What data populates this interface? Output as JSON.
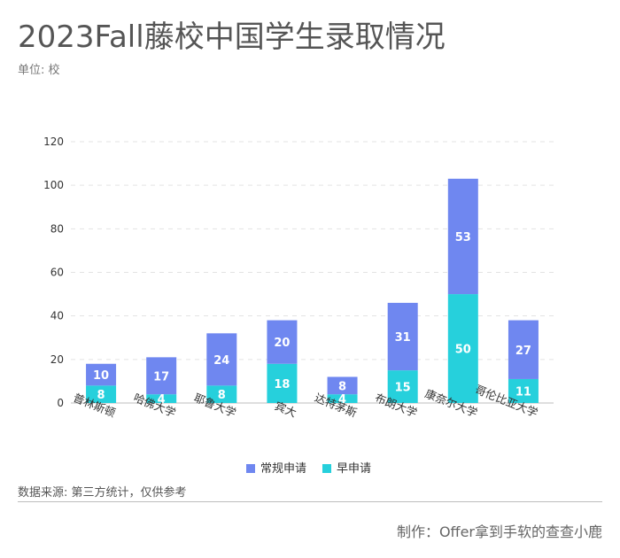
{
  "header": {
    "title": "2023Fall藤校中国学生录取情况",
    "unit": "单位: 校"
  },
  "footer": {
    "source": "数据来源: 第三方统计，仅供参考",
    "credit": "制作：Offer拿到手软的查查小鹿"
  },
  "colors": {
    "regular": "#6f87f0",
    "early": "#26d0dc",
    "grid": "#e3e3e3",
    "axis": "#bdbdbd"
  },
  "chart_data": {
    "type": "bar",
    "stacked": true,
    "categories": [
      "普林斯顿",
      "哈佛大学",
      "耶鲁大学",
      "宾大",
      "达特茅斯",
      "布朗大学",
      "康奈尔大学",
      "哥伦比亚大学"
    ],
    "series": [
      {
        "name": "早申请",
        "values": [
          8,
          4,
          8,
          18,
          4,
          15,
          50,
          11
        ]
      },
      {
        "name": "常规申请",
        "values": [
          10,
          17,
          24,
          20,
          8,
          31,
          53,
          27
        ]
      }
    ],
    "ylim": [
      0,
      120
    ],
    "yticks": [
      0,
      20,
      40,
      60,
      80,
      100,
      120
    ],
    "grid": true,
    "legend": [
      "常规申请",
      "早申请"
    ],
    "legend_position": "bottom"
  }
}
